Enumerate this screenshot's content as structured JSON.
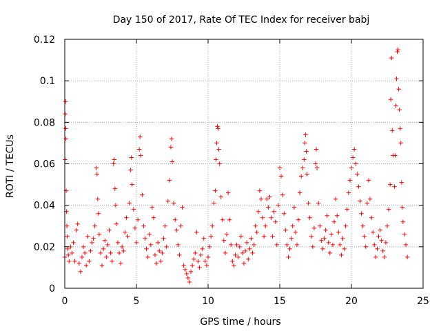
{
  "chart_data": {
    "type": "scatter",
    "title": "Day 150 of 2017, Rate Of TEC Index for receiver babj",
    "xlabel": "GPS time / hours",
    "ylabel": "ROTI / TECUs",
    "xlim": [
      0,
      25
    ],
    "ylim": [
      0,
      0.12
    ],
    "x_ticks": [
      0,
      5,
      10,
      15,
      20,
      25
    ],
    "x_tick_labels": [
      "0",
      "5",
      "10",
      "15",
      "20",
      "25"
    ],
    "y_ticks": [
      0,
      0.02,
      0.04,
      0.06,
      0.08,
      0.1,
      0.12
    ],
    "y_tick_labels": [
      "0",
      "0.02",
      "0.04",
      "0.06",
      "0.08",
      "0.1",
      "0.12"
    ],
    "grid": true,
    "marker": "+",
    "series": [
      {
        "name": "ROTI",
        "color": "#ff0000",
        "points": [
          [
            0.0,
            0.015
          ],
          [
            0.02,
            0.062
          ],
          [
            0.03,
            0.084
          ],
          [
            0.05,
            0.09
          ],
          [
            0.07,
            0.077
          ],
          [
            0.08,
            0.072
          ],
          [
            0.1,
            0.047
          ],
          [
            0.12,
            0.037
          ],
          [
            0.15,
            0.03
          ],
          [
            0.18,
            0.025
          ],
          [
            0.2,
            0.019
          ],
          [
            0.25,
            0.016
          ],
          [
            0.3,
            0.013
          ],
          [
            0.4,
            0.02
          ],
          [
            0.5,
            0.017
          ],
          [
            0.6,
            0.022
          ],
          [
            0.7,
            0.013
          ],
          [
            0.8,
            0.028
          ],
          [
            0.9,
            0.031
          ],
          [
            1.0,
            0.012
          ],
          [
            1.1,
            0.008
          ],
          [
            1.2,
            0.015
          ],
          [
            1.3,
            0.02
          ],
          [
            1.4,
            0.017
          ],
          [
            1.5,
            0.011
          ],
          [
            1.6,
            0.025
          ],
          [
            1.7,
            0.013
          ],
          [
            1.8,
            0.018
          ],
          [
            1.9,
            0.022
          ],
          [
            2.0,
            0.024
          ],
          [
            2.1,
            0.03
          ],
          [
            2.2,
            0.058
          ],
          [
            2.25,
            0.055
          ],
          [
            2.3,
            0.043
          ],
          [
            2.35,
            0.036
          ],
          [
            2.4,
            0.026
          ],
          [
            2.5,
            0.017
          ],
          [
            2.6,
            0.011
          ],
          [
            2.7,
            0.019
          ],
          [
            2.8,
            0.023
          ],
          [
            2.9,
            0.015
          ],
          [
            3.0,
            0.021
          ],
          [
            3.1,
            0.028
          ],
          [
            3.2,
            0.017
          ],
          [
            3.3,
            0.013
          ],
          [
            3.4,
            0.06
          ],
          [
            3.45,
            0.062
          ],
          [
            3.5,
            0.048
          ],
          [
            3.55,
            0.04
          ],
          [
            3.6,
            0.031
          ],
          [
            3.7,
            0.022
          ],
          [
            3.8,
            0.017
          ],
          [
            3.9,
            0.012
          ],
          [
            4.0,
            0.02
          ],
          [
            4.1,
            0.018
          ],
          [
            4.2,
            0.027
          ],
          [
            4.3,
            0.034
          ],
          [
            4.4,
            0.025
          ],
          [
            4.5,
            0.041
          ],
          [
            4.6,
            0.057
          ],
          [
            4.65,
            0.063
          ],
          [
            4.7,
            0.05
          ],
          [
            4.8,
            0.038
          ],
          [
            4.9,
            0.029
          ],
          [
            5.0,
            0.022
          ],
          [
            5.1,
            0.033
          ],
          [
            5.2,
            0.067
          ],
          [
            5.25,
            0.073
          ],
          [
            5.3,
            0.064
          ],
          [
            5.4,
            0.045
          ],
          [
            5.5,
            0.03
          ],
          [
            5.6,
            0.024
          ],
          [
            5.7,
            0.019
          ],
          [
            5.8,
            0.015
          ],
          [
            5.9,
            0.026
          ],
          [
            6.0,
            0.021
          ],
          [
            6.1,
            0.039
          ],
          [
            6.2,
            0.034
          ],
          [
            6.3,
            0.016
          ],
          [
            6.4,
            0.012
          ],
          [
            6.5,
            0.022
          ],
          [
            6.6,
            0.018
          ],
          [
            6.7,
            0.013
          ],
          [
            6.8,
            0.017
          ],
          [
            6.9,
            0.024
          ],
          [
            7.0,
            0.03
          ],
          [
            7.1,
            0.02
          ],
          [
            7.2,
            0.042
          ],
          [
            7.3,
            0.052
          ],
          [
            7.4,
            0.068
          ],
          [
            7.45,
            0.072
          ],
          [
            7.5,
            0.061
          ],
          [
            7.6,
            0.041
          ],
          [
            7.7,
            0.033
          ],
          [
            7.8,
            0.028
          ],
          [
            7.9,
            0.021
          ],
          [
            8.0,
            0.016
          ],
          [
            8.1,
            0.03
          ],
          [
            8.2,
            0.039
          ],
          [
            8.3,
            0.011
          ],
          [
            8.4,
            0.009
          ],
          [
            8.5,
            0.007
          ],
          [
            8.6,
            0.005
          ],
          [
            8.7,
            0.003
          ],
          [
            8.8,
            0.008
          ],
          [
            8.9,
            0.011
          ],
          [
            9.0,
            0.014
          ],
          [
            9.1,
            0.017
          ],
          [
            9.2,
            0.027
          ],
          [
            9.3,
            0.013
          ],
          [
            9.4,
            0.01
          ],
          [
            9.5,
            0.016
          ],
          [
            9.6,
            0.019
          ],
          [
            9.7,
            0.024
          ],
          [
            9.8,
            0.013
          ],
          [
            9.9,
            0.011
          ],
          [
            10.0,
            0.015
          ],
          [
            10.1,
            0.02
          ],
          [
            10.2,
            0.025
          ],
          [
            10.3,
            0.03
          ],
          [
            10.4,
            0.041
          ],
          [
            10.5,
            0.047
          ],
          [
            10.55,
            0.062
          ],
          [
            10.6,
            0.07
          ],
          [
            10.65,
            0.078
          ],
          [
            10.7,
            0.077
          ],
          [
            10.75,
            0.067
          ],
          [
            10.8,
            0.06
          ],
          [
            10.9,
            0.044
          ],
          [
            11.0,
            0.033
          ],
          [
            11.1,
            0.023
          ],
          [
            11.2,
            0.017
          ],
          [
            11.3,
            0.026
          ],
          [
            11.4,
            0.046
          ],
          [
            11.5,
            0.033
          ],
          [
            11.6,
            0.021
          ],
          [
            11.7,
            0.013
          ],
          [
            11.8,
            0.011
          ],
          [
            11.9,
            0.016
          ],
          [
            12.0,
            0.021
          ],
          [
            12.1,
            0.015
          ],
          [
            12.2,
            0.02
          ],
          [
            12.3,
            0.025
          ],
          [
            12.4,
            0.017
          ],
          [
            12.5,
            0.012
          ],
          [
            12.6,
            0.018
          ],
          [
            12.7,
            0.022
          ],
          [
            12.8,
            0.014
          ],
          [
            12.9,
            0.019
          ],
          [
            13.0,
            0.024
          ],
          [
            13.1,
            0.017
          ],
          [
            13.2,
            0.021
          ],
          [
            13.3,
            0.03
          ],
          [
            13.4,
            0.027
          ],
          [
            13.5,
            0.037
          ],
          [
            13.6,
            0.047
          ],
          [
            13.7,
            0.043
          ],
          [
            13.8,
            0.034
          ],
          [
            13.9,
            0.025
          ],
          [
            14.0,
            0.03
          ],
          [
            14.1,
            0.043
          ],
          [
            14.2,
            0.039
          ],
          [
            14.3,
            0.044
          ],
          [
            14.4,
            0.034
          ],
          [
            14.5,
            0.025
          ],
          [
            14.6,
            0.037
          ],
          [
            14.7,
            0.032
          ],
          [
            14.8,
            0.021
          ],
          [
            14.9,
            0.04
          ],
          [
            15.0,
            0.058
          ],
          [
            15.1,
            0.054
          ],
          [
            15.2,
            0.045
          ],
          [
            15.3,
            0.036
          ],
          [
            15.4,
            0.028
          ],
          [
            15.5,
            0.021
          ],
          [
            15.6,
            0.015
          ],
          [
            15.7,
            0.019
          ],
          [
            15.8,
            0.024
          ],
          [
            15.9,
            0.03
          ],
          [
            16.0,
            0.039
          ],
          [
            16.1,
            0.027
          ],
          [
            16.2,
            0.021
          ],
          [
            16.3,
            0.033
          ],
          [
            16.4,
            0.046
          ],
          [
            16.5,
            0.054
          ],
          [
            16.6,
            0.058
          ],
          [
            16.7,
            0.062
          ],
          [
            16.75,
            0.07
          ],
          [
            16.8,
            0.074
          ],
          [
            16.85,
            0.066
          ],
          [
            16.9,
            0.055
          ],
          [
            17.0,
            0.041
          ],
          [
            17.1,
            0.034
          ],
          [
            17.2,
            0.025
          ],
          [
            17.3,
            0.02
          ],
          [
            17.4,
            0.029
          ],
          [
            17.5,
            0.06
          ],
          [
            17.55,
            0.067
          ],
          [
            17.6,
            0.058
          ],
          [
            17.7,
            0.041
          ],
          [
            17.8,
            0.03
          ],
          [
            17.9,
            0.023
          ],
          [
            18.0,
            0.019
          ],
          [
            18.1,
            0.024
          ],
          [
            18.2,
            0.028
          ],
          [
            18.3,
            0.035
          ],
          [
            18.4,
            0.022
          ],
          [
            18.5,
            0.017
          ],
          [
            18.6,
            0.026
          ],
          [
            18.7,
            0.021
          ],
          [
            18.8,
            0.032
          ],
          [
            18.9,
            0.043
          ],
          [
            19.0,
            0.035
          ],
          [
            19.1,
            0.027
          ],
          [
            19.2,
            0.021
          ],
          [
            19.3,
            0.016
          ],
          [
            19.4,
            0.024
          ],
          [
            19.5,
            0.019
          ],
          [
            19.6,
            0.03
          ],
          [
            19.7,
            0.038
          ],
          [
            19.8,
            0.046
          ],
          [
            19.9,
            0.052
          ],
          [
            20.0,
            0.058
          ],
          [
            20.1,
            0.063
          ],
          [
            20.2,
            0.067
          ],
          [
            20.3,
            0.06
          ],
          [
            20.4,
            0.055
          ],
          [
            20.5,
            0.049
          ],
          [
            20.6,
            0.042
          ],
          [
            20.7,
            0.036
          ],
          [
            20.8,
            0.03
          ],
          [
            20.9,
            0.025
          ],
          [
            21.0,
            0.02
          ],
          [
            21.1,
            0.041
          ],
          [
            21.2,
            0.052
          ],
          [
            21.3,
            0.043
          ],
          [
            21.4,
            0.034
          ],
          [
            21.5,
            0.027
          ],
          [
            21.6,
            0.021
          ],
          [
            21.7,
            0.015
          ],
          [
            21.8,
            0.019
          ],
          [
            21.9,
            0.025
          ],
          [
            22.0,
            0.028
          ],
          [
            22.1,
            0.023
          ],
          [
            22.2,
            0.018
          ],
          [
            22.3,
            0.015
          ],
          [
            22.4,
            0.022
          ],
          [
            22.5,
            0.03
          ],
          [
            22.6,
            0.038
          ],
          [
            22.7,
            0.05
          ],
          [
            22.75,
            0.091
          ],
          [
            22.8,
            0.111
          ],
          [
            22.85,
            0.076
          ],
          [
            22.9,
            0.064
          ],
          [
            23.0,
            0.049
          ],
          [
            23.05,
            0.064
          ],
          [
            23.1,
            0.088
          ],
          [
            23.15,
            0.101
          ],
          [
            23.2,
            0.114
          ],
          [
            23.25,
            0.115
          ],
          [
            23.3,
            0.096
          ],
          [
            23.35,
            0.086
          ],
          [
            23.4,
            0.077
          ],
          [
            23.45,
            0.07
          ],
          [
            23.5,
            0.051
          ],
          [
            23.55,
            0.039
          ],
          [
            23.6,
            0.032
          ],
          [
            23.7,
            0.026
          ],
          [
            23.8,
            0.021
          ],
          [
            23.9,
            0.015
          ]
        ]
      }
    ]
  }
}
